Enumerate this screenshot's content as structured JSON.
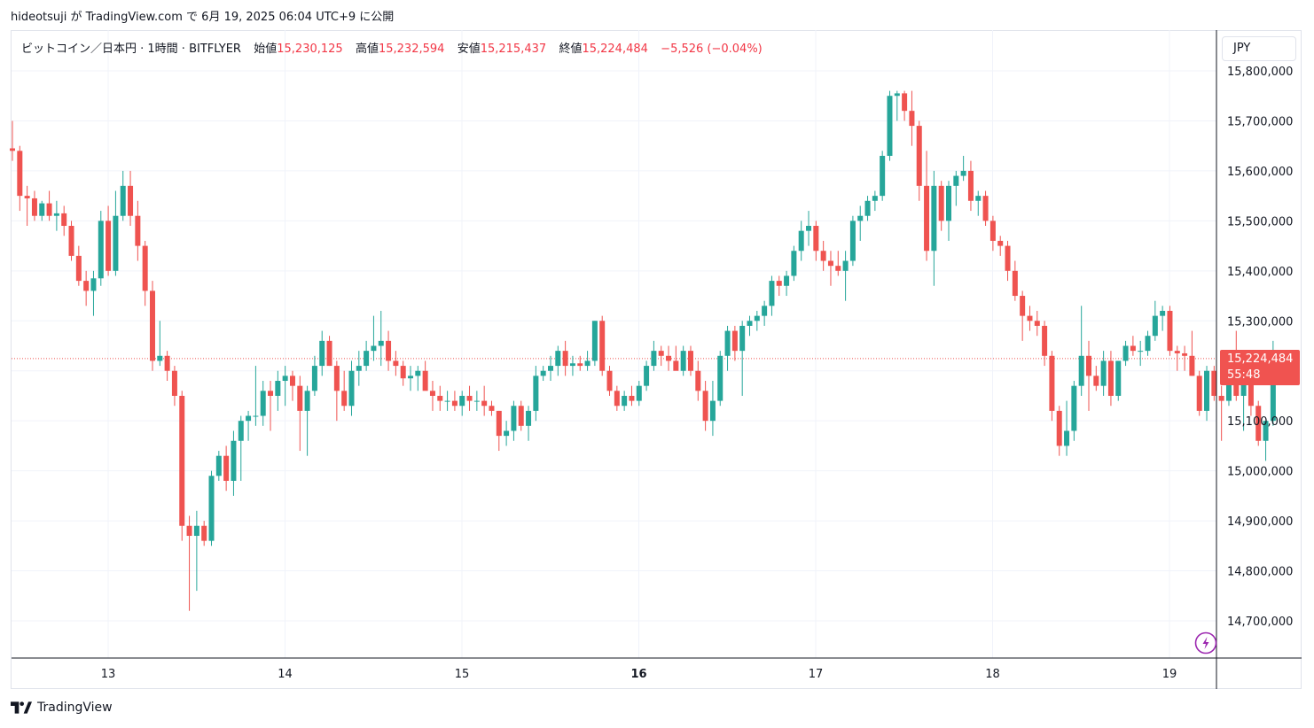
{
  "header": {
    "author": "hideotsuji",
    "published_text": "hideotsuji が TradingView.com で 6月 19, 2025 06:04 UTC+9 に公開"
  },
  "legend": {
    "symbol": "ビットコイン／日本円 · 1時間 · BITFLYER",
    "open_label": "始値",
    "open": "15,230,125",
    "high_label": "高値",
    "high": "15,232,594",
    "low_label": "安値",
    "low": "15,215,437",
    "close_label": "終値",
    "close": "15,224,484",
    "change": "−5,526 (−0.04%)"
  },
  "currency": "JPY",
  "last_price": {
    "price": "15,224,484",
    "countdown": "55:48"
  },
  "brand": {
    "name": "TradingView"
  },
  "colors": {
    "up": "#26a69a",
    "down": "#ef5350",
    "grid": "#f0f3fa",
    "text": "#131722",
    "badge": "#f05350",
    "bolt": "#9c27b0"
  },
  "chart_data": {
    "type": "candlestick",
    "ylim": [
      14640000,
      15830000
    ],
    "y_ticks": [
      14700000,
      14800000,
      14900000,
      15000000,
      15100000,
      15200000,
      15300000,
      15400000,
      15500000,
      15600000,
      15700000,
      15800000
    ],
    "y_tick_labels": [
      "14,700,000",
      "14,800,000",
      "14,900,000",
      "15,000,000",
      "15,100,000",
      "15,200,000",
      "15,300,000",
      "15,400,000",
      "15,500,000",
      "15,600,000",
      "15,700,000",
      "15,800,000"
    ],
    "x_tick_labels": [
      {
        "label": "13",
        "day": 13,
        "bold": false
      },
      {
        "label": "14",
        "day": 14,
        "bold": false
      },
      {
        "label": "15",
        "day": 15,
        "bold": false
      },
      {
        "label": "16",
        "day": 16,
        "bold": true
      },
      {
        "label": "17",
        "day": 17,
        "bold": false
      },
      {
        "label": "18",
        "day": 18,
        "bold": false
      },
      {
        "label": "19",
        "day": 19,
        "bold": false
      }
    ],
    "x_start": "6月12日 10:00",
    "bar_interval": "1時間",
    "last_close": 15224484,
    "candles": [
      [
        15645000,
        15700000,
        15620000,
        15640000
      ],
      [
        15640000,
        15650000,
        15520000,
        15550000
      ],
      [
        15550000,
        15570000,
        15490000,
        15545000
      ],
      [
        15545000,
        15560000,
        15500000,
        15510000
      ],
      [
        15510000,
        15540000,
        15500000,
        15535000
      ],
      [
        15535000,
        15560000,
        15500000,
        15510000
      ],
      [
        15510000,
        15540000,
        15480000,
        15515000
      ],
      [
        15515000,
        15530000,
        15470000,
        15490000
      ],
      [
        15490000,
        15500000,
        15420000,
        15430000
      ],
      [
        15430000,
        15450000,
        15370000,
        15380000
      ],
      [
        15380000,
        15400000,
        15330000,
        15360000
      ],
      [
        15360000,
        15400000,
        15310000,
        15385000
      ],
      [
        15385000,
        15520000,
        15370000,
        15500000
      ],
      [
        15500000,
        15530000,
        15390000,
        15400000
      ],
      [
        15400000,
        15560000,
        15390000,
        15510000
      ],
      [
        15510000,
        15600000,
        15500000,
        15570000
      ],
      [
        15570000,
        15600000,
        15490000,
        15510000
      ],
      [
        15510000,
        15540000,
        15420000,
        15450000
      ],
      [
        15450000,
        15460000,
        15330000,
        15360000
      ],
      [
        15360000,
        15380000,
        15200000,
        15220000
      ],
      [
        15220000,
        15300000,
        15210000,
        15230000
      ],
      [
        15230000,
        15240000,
        15180000,
        15200000
      ],
      [
        15200000,
        15210000,
        15130000,
        15150000
      ],
      [
        15150000,
        15160000,
        14860000,
        14890000
      ],
      [
        14890000,
        14910000,
        14720000,
        14870000
      ],
      [
        14870000,
        14920000,
        14760000,
        14890000
      ],
      [
        14890000,
        14900000,
        14850000,
        14860000
      ],
      [
        14860000,
        15000000,
        14850000,
        14990000
      ],
      [
        14990000,
        15040000,
        14980000,
        15030000
      ],
      [
        15030000,
        15050000,
        14960000,
        14980000
      ],
      [
        14980000,
        15080000,
        14950000,
        15060000
      ],
      [
        15060000,
        15110000,
        14980000,
        15100000
      ],
      [
        15100000,
        15120000,
        15060000,
        15110000
      ],
      [
        15110000,
        15210000,
        15090000,
        15110000
      ],
      [
        15110000,
        15180000,
        15090000,
        15160000
      ],
      [
        15160000,
        15180000,
        15080000,
        15150000
      ],
      [
        15150000,
        15200000,
        15120000,
        15180000
      ],
      [
        15180000,
        15210000,
        15130000,
        15190000
      ],
      [
        15190000,
        15200000,
        15140000,
        15170000
      ],
      [
        15170000,
        15190000,
        15040000,
        15120000
      ],
      [
        15120000,
        15170000,
        15030000,
        15160000
      ],
      [
        15160000,
        15230000,
        15150000,
        15210000
      ],
      [
        15210000,
        15280000,
        15190000,
        15260000
      ],
      [
        15260000,
        15270000,
        15210000,
        15210000
      ],
      [
        15210000,
        15220000,
        15100000,
        15160000
      ],
      [
        15160000,
        15200000,
        15120000,
        15130000
      ],
      [
        15130000,
        15220000,
        15110000,
        15200000
      ],
      [
        15200000,
        15240000,
        15170000,
        15210000
      ],
      [
        15210000,
        15260000,
        15200000,
        15240000
      ],
      [
        15240000,
        15310000,
        15220000,
        15250000
      ],
      [
        15250000,
        15320000,
        15210000,
        15260000
      ],
      [
        15260000,
        15280000,
        15200000,
        15220000
      ],
      [
        15220000,
        15240000,
        15190000,
        15210000
      ],
      [
        15210000,
        15220000,
        15170000,
        15185000
      ],
      [
        15185000,
        15210000,
        15160000,
        15190000
      ],
      [
        15190000,
        15210000,
        15160000,
        15200000
      ],
      [
        15200000,
        15220000,
        15170000,
        15160000
      ],
      [
        15160000,
        15180000,
        15120000,
        15150000
      ],
      [
        15150000,
        15170000,
        15120000,
        15140000
      ],
      [
        15140000,
        15160000,
        15120000,
        15140000
      ],
      [
        15140000,
        15160000,
        15120000,
        15130000
      ],
      [
        15130000,
        15160000,
        15110000,
        15150000
      ],
      [
        15150000,
        15170000,
        15120000,
        15140000
      ],
      [
        15140000,
        15160000,
        15120000,
        15140000
      ],
      [
        15140000,
        15170000,
        15110000,
        15130000
      ],
      [
        15130000,
        15140000,
        15110000,
        15120000
      ],
      [
        15120000,
        15120000,
        15040000,
        15070000
      ],
      [
        15070000,
        15100000,
        15050000,
        15080000
      ],
      [
        15080000,
        15140000,
        15060000,
        15130000
      ],
      [
        15130000,
        15140000,
        15080000,
        15090000
      ],
      [
        15090000,
        15130000,
        15060000,
        15120000
      ],
      [
        15120000,
        15210000,
        15100000,
        15190000
      ],
      [
        15190000,
        15210000,
        15180000,
        15200000
      ],
      [
        15200000,
        15230000,
        15180000,
        15210000
      ],
      [
        15210000,
        15250000,
        15190000,
        15240000
      ],
      [
        15240000,
        15260000,
        15190000,
        15210000
      ],
      [
        15210000,
        15230000,
        15190000,
        15215000
      ],
      [
        15215000,
        15230000,
        15200000,
        15210000
      ],
      [
        15210000,
        15240000,
        15200000,
        15220000
      ],
      [
        15220000,
        15300000,
        15210000,
        15300000
      ],
      [
        15300000,
        15310000,
        15190000,
        15200000
      ],
      [
        15200000,
        15210000,
        15150000,
        15160000
      ],
      [
        15160000,
        15170000,
        15120000,
        15130000
      ],
      [
        15130000,
        15160000,
        15120000,
        15150000
      ],
      [
        15150000,
        15170000,
        15130000,
        15140000
      ],
      [
        15140000,
        15180000,
        15130000,
        15170000
      ],
      [
        15170000,
        15220000,
        15160000,
        15210000
      ],
      [
        15210000,
        15260000,
        15200000,
        15240000
      ],
      [
        15240000,
        15250000,
        15210000,
        15230000
      ],
      [
        15230000,
        15250000,
        15200000,
        15220000
      ],
      [
        15220000,
        15250000,
        15210000,
        15200000
      ],
      [
        15200000,
        15250000,
        15190000,
        15240000
      ],
      [
        15240000,
        15250000,
        15190000,
        15200000
      ],
      [
        15200000,
        15220000,
        15140000,
        15160000
      ],
      [
        15160000,
        15180000,
        15080000,
        15100000
      ],
      [
        15100000,
        15180000,
        15070000,
        15140000
      ],
      [
        15140000,
        15240000,
        15130000,
        15230000
      ],
      [
        15230000,
        15290000,
        15200000,
        15280000
      ],
      [
        15280000,
        15290000,
        15220000,
        15240000
      ],
      [
        15240000,
        15300000,
        15150000,
        15290000
      ],
      [
        15290000,
        15310000,
        15270000,
        15300000
      ],
      [
        15300000,
        15320000,
        15280000,
        15310000
      ],
      [
        15310000,
        15340000,
        15290000,
        15330000
      ],
      [
        15330000,
        15390000,
        15310000,
        15380000
      ],
      [
        15380000,
        15390000,
        15350000,
        15370000
      ],
      [
        15370000,
        15400000,
        15350000,
        15390000
      ],
      [
        15390000,
        15450000,
        15380000,
        15440000
      ],
      [
        15440000,
        15500000,
        15420000,
        15480000
      ],
      [
        15480000,
        15520000,
        15450000,
        15490000
      ],
      [
        15490000,
        15500000,
        15420000,
        15440000
      ],
      [
        15440000,
        15460000,
        15400000,
        15420000
      ],
      [
        15420000,
        15440000,
        15370000,
        15410000
      ],
      [
        15410000,
        15440000,
        15390000,
        15400000
      ],
      [
        15400000,
        15440000,
        15340000,
        15420000
      ],
      [
        15420000,
        15510000,
        15410000,
        15500000
      ],
      [
        15500000,
        15530000,
        15460000,
        15510000
      ],
      [
        15510000,
        15550000,
        15500000,
        15540000
      ],
      [
        15540000,
        15560000,
        15520000,
        15550000
      ],
      [
        15550000,
        15640000,
        15540000,
        15630000
      ],
      [
        15630000,
        15760000,
        15620000,
        15750000
      ],
      [
        15750000,
        15760000,
        15700000,
        15755000
      ],
      [
        15755000,
        15760000,
        15700000,
        15720000
      ],
      [
        15720000,
        15760000,
        15650000,
        15690000
      ],
      [
        15690000,
        15700000,
        15540000,
        15570000
      ],
      [
        15570000,
        15640000,
        15420000,
        15440000
      ],
      [
        15440000,
        15600000,
        15370000,
        15570000
      ],
      [
        15570000,
        15580000,
        15480000,
        15500000
      ],
      [
        15500000,
        15580000,
        15460000,
        15570000
      ],
      [
        15570000,
        15600000,
        15530000,
        15590000
      ],
      [
        15590000,
        15630000,
        15580000,
        15600000
      ],
      [
        15600000,
        15620000,
        15520000,
        15540000
      ],
      [
        15540000,
        15560000,
        15510000,
        15550000
      ],
      [
        15550000,
        15560000,
        15490000,
        15500000
      ],
      [
        15500000,
        15510000,
        15440000,
        15460000
      ],
      [
        15460000,
        15470000,
        15430000,
        15450000
      ],
      [
        15450000,
        15460000,
        15380000,
        15400000
      ],
      [
        15400000,
        15420000,
        15340000,
        15350000
      ],
      [
        15350000,
        15360000,
        15260000,
        15310000
      ],
      [
        15310000,
        15330000,
        15280000,
        15300000
      ],
      [
        15300000,
        15320000,
        15270000,
        15290000
      ],
      [
        15290000,
        15300000,
        15210000,
        15230000
      ],
      [
        15230000,
        15240000,
        15100000,
        15120000
      ],
      [
        15120000,
        15130000,
        15030000,
        15050000
      ],
      [
        15050000,
        15140000,
        15030000,
        15080000
      ],
      [
        15080000,
        15180000,
        15060000,
        15170000
      ],
      [
        15170000,
        15330000,
        15150000,
        15230000
      ],
      [
        15230000,
        15260000,
        15120000,
        15190000
      ],
      [
        15190000,
        15210000,
        15160000,
        15170000
      ],
      [
        15170000,
        15240000,
        15150000,
        15220000
      ],
      [
        15220000,
        15240000,
        15130000,
        15150000
      ],
      [
        15150000,
        15220000,
        15140000,
        15220000
      ],
      [
        15220000,
        15260000,
        15210000,
        15250000
      ],
      [
        15250000,
        15270000,
        15230000,
        15240000
      ],
      [
        15240000,
        15260000,
        15210000,
        15240000
      ],
      [
        15240000,
        15280000,
        15230000,
        15270000
      ],
      [
        15270000,
        15340000,
        15260000,
        15310000
      ],
      [
        15310000,
        15330000,
        15280000,
        15320000
      ],
      [
        15320000,
        15330000,
        15230000,
        15240000
      ],
      [
        15240000,
        15250000,
        15200000,
        15235000
      ],
      [
        15235000,
        15250000,
        15200000,
        15230000
      ],
      [
        15230000,
        15280000,
        15190000,
        15190000
      ],
      [
        15190000,
        15200000,
        15110000,
        15120000
      ],
      [
        15120000,
        15210000,
        15100000,
        15200000
      ],
      [
        15200000,
        15210000,
        15140000,
        15150000
      ],
      [
        15150000,
        15170000,
        15060000,
        15140000
      ],
      [
        15140000,
        15220000,
        15130000,
        15180000
      ],
      [
        15180000,
        15280000,
        15140000,
        15150000
      ],
      [
        15150000,
        15180000,
        15080000,
        15180000
      ],
      [
        15180000,
        15190000,
        15110000,
        15130000
      ],
      [
        15130000,
        15140000,
        15050000,
        15060000
      ],
      [
        15060000,
        15100000,
        15020000,
        15100000
      ],
      [
        15100000,
        15260000,
        15090000,
        15230000
      ],
      [
        15230000,
        15233000,
        15215000,
        15224484
      ]
    ]
  }
}
